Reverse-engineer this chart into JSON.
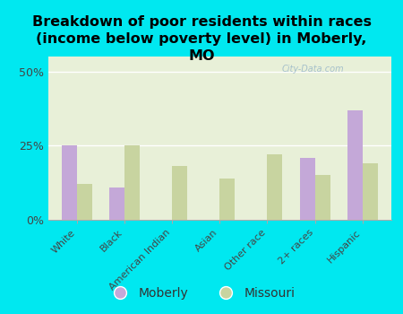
{
  "title": "Breakdown of poor residents within races\n(income below poverty level) in Moberly,\nMO",
  "categories": [
    "White",
    "Black",
    "American Indian",
    "Asian",
    "Other race",
    "2+ races",
    "Hispanic"
  ],
  "moberly_values": [
    25,
    11,
    0,
    0,
    0,
    21,
    37
  ],
  "missouri_values": [
    12,
    25,
    18,
    14,
    22,
    15,
    19
  ],
  "moberly_color": "#c4a8d8",
  "missouri_color": "#c8d4a0",
  "background_color": "#00e8f0",
  "plot_bg_color": "#e8f0d8",
  "ylim": [
    0,
    55
  ],
  "yticks": [
    0,
    25,
    50
  ],
  "ytick_labels": [
    "0%",
    "25%",
    "50%"
  ],
  "title_fontsize": 11.5,
  "bar_width": 0.32,
  "watermark": "City-Data.com"
}
